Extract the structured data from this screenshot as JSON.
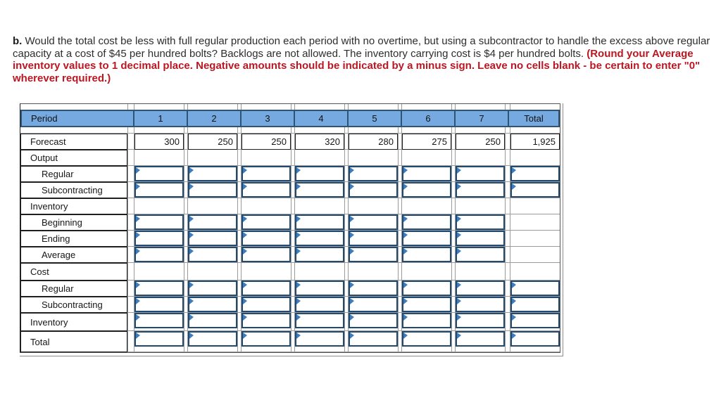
{
  "question": {
    "prefix": "b.",
    "body": " Would the total cost be less with full regular production each period with no overtime, but using a subcontractor to handle the excess above regular capacity at a cost of $45 per hundred bolts? Backlogs are not allowed. The inventory carrying cost is $4 per hundred bolts. ",
    "instructions": "(Round your Average inventory values to 1 decimal place. Negative amounts should be indicated by a minus sign. Leave no cells blank - be certain to enter \"0\" wherever required.)"
  },
  "table": {
    "header": [
      "Period",
      "1",
      "2",
      "3",
      "4",
      "5",
      "6",
      "7",
      "Total"
    ],
    "rows": [
      {
        "label": "Forecast",
        "indent": 1,
        "type": "values",
        "values": [
          "300",
          "250",
          "250",
          "320",
          "280",
          "275",
          "250",
          "1,925"
        ]
      },
      {
        "label": "Output",
        "indent": 1,
        "type": "section"
      },
      {
        "label": "Regular",
        "indent": 2,
        "type": "inputs",
        "input_columns": 8
      },
      {
        "label": "Subcontracting",
        "indent": 2,
        "type": "inputs",
        "input_columns": 8
      },
      {
        "label": "Inventory",
        "indent": 1,
        "type": "section"
      },
      {
        "label": "Beginning",
        "indent": 2,
        "type": "inputs",
        "input_columns": 7
      },
      {
        "label": "Ending",
        "indent": 2,
        "type": "inputs",
        "input_columns": 7
      },
      {
        "label": "Average",
        "indent": 2,
        "type": "inputs",
        "input_columns": 7
      },
      {
        "label": "Cost",
        "indent": 1,
        "type": "section"
      },
      {
        "label": "Regular",
        "indent": 2,
        "type": "inputs",
        "input_columns": 8
      },
      {
        "label": "Subcontracting",
        "indent": 2,
        "type": "inputs",
        "input_columns": 8
      },
      {
        "label": "Inventory",
        "indent": 1,
        "type": "inputs",
        "input_columns": 8
      },
      {
        "label": "Total",
        "indent": 1,
        "type": "inputs",
        "input_columns": 8
      }
    ],
    "input_cell_value": ""
  },
  "colors": {
    "header_bg": "#76a9df",
    "header_border": "#2f5373",
    "input_border": "#224a70",
    "input_flag": "#3a7dc0",
    "grid_line": "#9b9b9b",
    "cell_border": "#1f1f1f",
    "instruction_red": "#bb1722"
  }
}
